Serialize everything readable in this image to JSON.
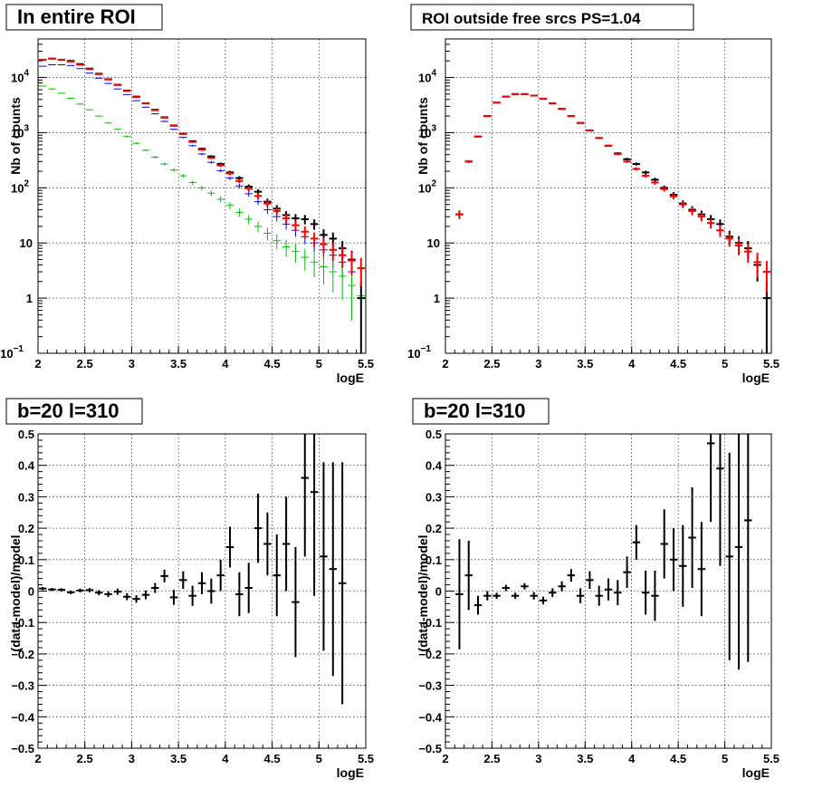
{
  "chart_data": [
    {
      "type": "histogram",
      "title": "In entire ROI",
      "xlabel": "logE",
      "ylabel": "Nb of counts",
      "xlim": [
        2,
        5.5
      ],
      "ylim": [
        0.1,
        50000
      ],
      "yscale": "log",
      "grid": true,
      "xticks": [
        "2",
        "2.5",
        "3",
        "3.5",
        "4",
        "4.5",
        "5",
        "5.5"
      ],
      "yticks": [
        {
          "v": 0.1,
          "label": "10",
          "sup": "−1"
        },
        {
          "v": 1,
          "label": "1",
          "sup": ""
        },
        {
          "v": 10,
          "label": "10",
          "sup": ""
        },
        {
          "v": 100,
          "label": "10",
          "sup": "2"
        },
        {
          "v": 1000,
          "label": "10",
          "sup": "3"
        },
        {
          "v": 10000,
          "label": "10",
          "sup": "4"
        }
      ],
      "bin_width": 0.1,
      "x": [
        2.05,
        2.15,
        2.25,
        2.35,
        2.45,
        2.55,
        2.65,
        2.75,
        2.85,
        2.95,
        3.05,
        3.15,
        3.25,
        3.35,
        3.45,
        3.55,
        3.65,
        3.75,
        3.85,
        3.95,
        4.05,
        4.15,
        4.25,
        4.35,
        4.45,
        4.55,
        4.65,
        4.75,
        4.85,
        4.95,
        5.05,
        5.15,
        5.25,
        5.35,
        5.45
      ],
      "series": [
        {
          "color": "#0000ff",
          "style": "cross",
          "values": [
            16000,
            17000,
            17000,
            16500,
            14500,
            12000,
            9700,
            7800,
            6200,
            4900,
            3800,
            2900,
            2200,
            1600,
            1150,
            820,
            580,
            410,
            290,
            205,
            150,
            108,
            78,
            56,
            40,
            30,
            22,
            17,
            13,
            10,
            7.5,
            6,
            4.5,
            3,
            1
          ]
        },
        {
          "color": "#00c000",
          "style": "cross",
          "values": [
            7000,
            6200,
            5200,
            4200,
            3300,
            2600,
            2000,
            1500,
            1150,
            850,
            640,
            480,
            360,
            270,
            210,
            165,
            125,
            100,
            80,
            62,
            48,
            36,
            27,
            20,
            15,
            11,
            8.5,
            7,
            5.5,
            4.5,
            3.7,
            3,
            2.5,
            1.7,
            1.1
          ]
        },
        {
          "color": "#000000",
          "style": "cross",
          "values": [
            21000,
            22000,
            21000,
            20000,
            17500,
            14500,
            11700,
            9300,
            7400,
            5800,
            4500,
            3400,
            2600,
            1900,
            1350,
            950,
            700,
            510,
            370,
            270,
            190,
            150,
            105,
            85,
            56,
            42,
            32,
            28,
            27,
            22,
            14,
            12,
            8,
            5,
            1
          ]
        },
        {
          "color": "#ff0000",
          "style": "cross",
          "values": [
            21000,
            22000,
            21000,
            19500,
            17000,
            14200,
            11500,
            9200,
            7300,
            5700,
            4400,
            3400,
            2550,
            1870,
            1330,
            960,
            680,
            490,
            350,
            255,
            182,
            133,
            97,
            71,
            52,
            38,
            28,
            21,
            16,
            12,
            9.5,
            7.5,
            6,
            4.8,
            3.5
          ]
        }
      ]
    },
    {
      "type": "histogram",
      "title": "ROI outside free srcs PS=1.04",
      "xlabel": "logE",
      "ylabel": "Nb of counts",
      "xlim": [
        2,
        5.5
      ],
      "ylim": [
        0.1,
        50000
      ],
      "yscale": "log",
      "grid": true,
      "xticks": [
        "2",
        "2.5",
        "3",
        "3.5",
        "4",
        "4.5",
        "5",
        "5.5"
      ],
      "yticks": [
        {
          "v": 0.1,
          "label": "10",
          "sup": "−1"
        },
        {
          "v": 1,
          "label": "1",
          "sup": ""
        },
        {
          "v": 10,
          "label": "10",
          "sup": ""
        },
        {
          "v": 100,
          "label": "10",
          "sup": "2"
        },
        {
          "v": 1000,
          "label": "10",
          "sup": "3"
        },
        {
          "v": 10000,
          "label": "10",
          "sup": "4"
        }
      ],
      "bin_width": 0.1,
      "x": [
        2.15,
        2.25,
        2.35,
        2.45,
        2.55,
        2.65,
        2.75,
        2.85,
        2.95,
        3.05,
        3.15,
        3.25,
        3.35,
        3.45,
        3.55,
        3.65,
        3.75,
        3.85,
        3.95,
        4.05,
        4.15,
        4.25,
        4.35,
        4.45,
        4.55,
        4.65,
        4.75,
        4.85,
        4.95,
        5.05,
        5.15,
        5.25,
        5.35,
        5.45
      ],
      "series": [
        {
          "color": "#000000",
          "style": "cross",
          "values": [
            33,
            300,
            850,
            2000,
            3500,
            4500,
            5000,
            5000,
            4700,
            4100,
            3400,
            2700,
            2000,
            1500,
            1100,
            800,
            580,
            420,
            330,
            270,
            190,
            140,
            100,
            75,
            52,
            40,
            33,
            27,
            22,
            13,
            10,
            8,
            4,
            1
          ]
        },
        {
          "color": "#ff0000",
          "style": "cross",
          "values": [
            33,
            300,
            850,
            2000,
            3500,
            4500,
            5000,
            5000,
            4700,
            4100,
            3400,
            2700,
            2000,
            1500,
            1100,
            800,
            580,
            410,
            300,
            220,
            165,
            125,
            95,
            70,
            50,
            38,
            30,
            23,
            17,
            12,
            9,
            7,
            4.5,
            3
          ]
        }
      ]
    },
    {
      "type": "residual",
      "title": "b=20 l=310",
      "xlabel": "logE",
      "ylabel": "(data-model)/model",
      "xlim": [
        2,
        5.5
      ],
      "ylim": [
        -0.5,
        0.5
      ],
      "grid": true,
      "xticks": [
        "2",
        "2.5",
        "3",
        "3.5",
        "4",
        "4.5",
        "5",
        "5.5"
      ],
      "yticks": [
        "−0.5",
        "−0.4",
        "−0.3",
        "−0.2",
        "−0.1",
        "0",
        "0.1",
        "0.2",
        "0.3",
        "0.4",
        "0.5"
      ],
      "bin_width": 0.1,
      "x": [
        2.05,
        2.15,
        2.25,
        2.35,
        2.45,
        2.55,
        2.65,
        2.75,
        2.85,
        2.95,
        3.05,
        3.15,
        3.25,
        3.35,
        3.45,
        3.55,
        3.65,
        3.75,
        3.85,
        3.95,
        4.05,
        4.15,
        4.25,
        4.35,
        4.45,
        4.55,
        4.65,
        4.75,
        4.85,
        4.95,
        5.05,
        5.15,
        5.25
      ],
      "y": [
        0.008,
        0.005,
        0.004,
        -0.004,
        0.002,
        0.003,
        -0.005,
        -0.01,
        -0.002,
        -0.018,
        -0.025,
        -0.012,
        0.01,
        0.048,
        -0.02,
        0.035,
        -0.015,
        0.025,
        0.0,
        0.05,
        0.14,
        -0.01,
        0.01,
        0.2,
        0.15,
        0.05,
        0.15,
        -0.035,
        0.36,
        0.315,
        0.11,
        0.07,
        0.025
      ],
      "err": [
        0.005,
        0.005,
        0.005,
        0.006,
        0.006,
        0.007,
        0.008,
        0.009,
        0.01,
        0.011,
        0.012,
        0.014,
        0.016,
        0.02,
        0.024,
        0.028,
        0.032,
        0.035,
        0.04,
        0.05,
        0.065,
        0.07,
        0.08,
        0.11,
        0.1,
        0.13,
        0.15,
        0.175,
        0.25,
        0.33,
        0.3,
        0.34,
        0.385
      ]
    },
    {
      "type": "residual",
      "title": "b=20 l=310",
      "xlabel": "logE",
      "ylabel": "(data-model)/model",
      "xlim": [
        2,
        5.5
      ],
      "ylim": [
        -0.5,
        0.5
      ],
      "grid": true,
      "xticks": [
        "2",
        "2.5",
        "3",
        "3.5",
        "4",
        "4.5",
        "5",
        "5.5"
      ],
      "yticks": [
        "−0.5",
        "−0.4",
        "−0.3",
        "−0.2",
        "−0.1",
        "0",
        "0.1",
        "0.2",
        "0.3",
        "0.4",
        "0.5"
      ],
      "bin_width": 0.1,
      "x": [
        2.15,
        2.25,
        2.35,
        2.45,
        2.55,
        2.65,
        2.75,
        2.85,
        2.95,
        3.05,
        3.15,
        3.25,
        3.35,
        3.45,
        3.55,
        3.65,
        3.75,
        3.85,
        3.95,
        4.05,
        4.15,
        4.25,
        4.35,
        4.45,
        4.55,
        4.65,
        4.75,
        4.85,
        4.95,
        5.05,
        5.15,
        5.25
      ],
      "y": [
        -0.01,
        0.05,
        -0.045,
        -0.015,
        -0.015,
        0.01,
        -0.015,
        0.015,
        -0.015,
        -0.03,
        -0.005,
        0.015,
        0.05,
        -0.015,
        0.035,
        -0.015,
        0.005,
        -0.005,
        0.06,
        0.155,
        -0.005,
        -0.015,
        0.15,
        0.1,
        0.08,
        0.17,
        0.07,
        0.47,
        0.39,
        0.11,
        0.14,
        0.225
      ],
      "err": [
        0.175,
        0.11,
        0.03,
        0.015,
        0.01,
        0.01,
        0.01,
        0.01,
        0.012,
        0.012,
        0.014,
        0.016,
        0.02,
        0.024,
        0.028,
        0.032,
        0.035,
        0.04,
        0.05,
        0.055,
        0.07,
        0.08,
        0.11,
        0.1,
        0.13,
        0.16,
        0.15,
        0.25,
        0.31,
        0.33,
        0.39,
        0.45
      ]
    }
  ]
}
